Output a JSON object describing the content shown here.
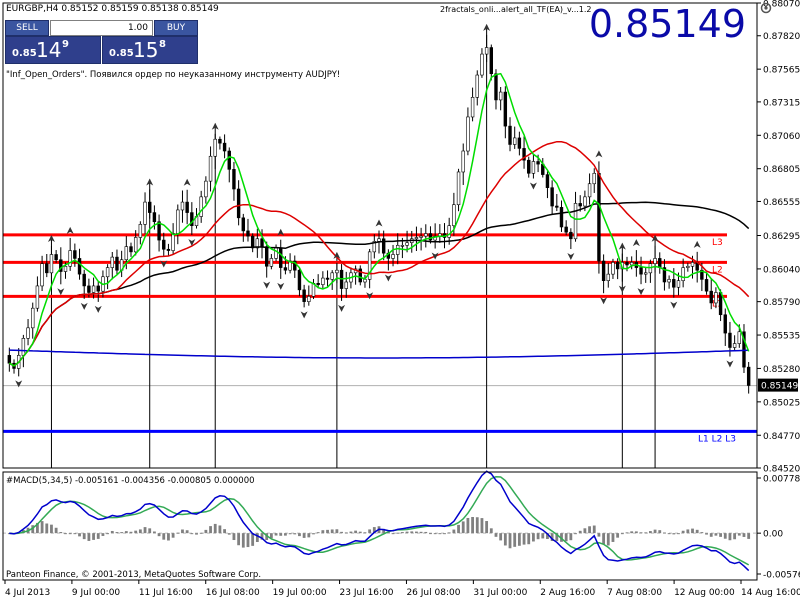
{
  "symbol_info": "EURGBP,H4  0.85152 0.85159 0.85138 0.85149",
  "trade_panel": {
    "sell_label": "SELL",
    "buy_label": "BUY",
    "lot_value": "1.00",
    "sell_price_small": "0.85",
    "sell_price_big": "14",
    "sell_price_sup": "9",
    "buy_price_small": "0.85",
    "buy_price_big": "15",
    "buy_price_sup": "8"
  },
  "big_price": "0.85149",
  "indicator_name": "2fractals_onli...alert_all_TF(EA)_v...1.2",
  "info_message": "\"Inf_Open_Orders\". Появился ордер по неуказанному инструменту AUDJPY!",
  "macd_label": "#MACD(5,34,5) -0.005161 -0.004356 -0.000805 0.000000",
  "copyright": "Panteon Finance, © 2001-2013, MetaQuotes Software Corp.",
  "colors": {
    "fast_ma": "#00dd00",
    "mid_ma": "#dd0000",
    "slow_ma": "#000000",
    "long_ma": "#0000cc",
    "level_lines": "#ff0000",
    "support_line": "#0000ff",
    "candles": "#000000",
    "macd_hist": "#808080",
    "macd_line": "#0000cc",
    "macd_signal": "#33aa55"
  },
  "chart_data": [
    {
      "type": "candlestick",
      "symbol": "EURGBP",
      "timeframe": "H4",
      "ylim": [
        0.8452,
        0.8807
      ],
      "y_ticks": [
        "0.88070",
        "0.87820",
        "0.87565",
        "0.87315",
        "0.87060",
        "0.86805",
        "0.86555",
        "0.86295",
        "0.86040",
        "0.85790",
        "0.85535",
        "0.85280",
        "0.85025",
        "0.84770",
        "0.84520"
      ],
      "x_ticks": [
        "4 Jul 2013",
        "9 Jul 00:00",
        "11 Jul 16:00",
        "16 Jul 08:00",
        "19 Jul 00:00",
        "23 Jul 16:00",
        "26 Jul 08:00",
        "31 Jul 00:00",
        "2 Aug 16:00",
        "7 Aug 08:00",
        "12 Aug 00:00",
        "14 Aug 16:00"
      ],
      "current_price": "0.85149",
      "levels": [
        {
          "name": "L3",
          "price": 0.863
        },
        {
          "name": "L2",
          "price": 0.8609
        },
        {
          "name": "L1",
          "price": 0.8583
        }
      ],
      "support_line": {
        "price": 0.848,
        "label": "L1 L2 L3"
      },
      "close": [
        0.8532,
        0.8528,
        0.8538,
        0.8551,
        0.8559,
        0.8574,
        0.8591,
        0.8608,
        0.8601,
        0.8615,
        0.8611,
        0.8602,
        0.8606,
        0.8618,
        0.8612,
        0.86,
        0.8591,
        0.8586,
        0.8591,
        0.8587,
        0.8598,
        0.8605,
        0.8613,
        0.8603,
        0.8611,
        0.8621,
        0.8617,
        0.8628,
        0.8638,
        0.8655,
        0.8647,
        0.864,
        0.8626,
        0.8619,
        0.8618,
        0.8631,
        0.8649,
        0.8655,
        0.8647,
        0.8637,
        0.8644,
        0.8659,
        0.8671,
        0.869,
        0.8703,
        0.87,
        0.8694,
        0.868,
        0.8665,
        0.8643,
        0.8633,
        0.8629,
        0.862,
        0.8627,
        0.8621,
        0.8606,
        0.8612,
        0.862,
        0.8605,
        0.8603,
        0.861,
        0.8603,
        0.8588,
        0.8579,
        0.8583,
        0.8593,
        0.8592,
        0.8597,
        0.8596,
        0.8601,
        0.8603,
        0.8589,
        0.8594,
        0.8601,
        0.8604,
        0.8594,
        0.8596,
        0.8617,
        0.8625,
        0.8627,
        0.8616,
        0.8612,
        0.8615,
        0.8622,
        0.8622,
        0.8624,
        0.8627,
        0.8628,
        0.8629,
        0.8631,
        0.8626,
        0.8629,
        0.8631,
        0.8628,
        0.8637,
        0.8653,
        0.8678,
        0.8694,
        0.872,
        0.8735,
        0.8752,
        0.8768,
        0.8773,
        0.8753,
        0.8733,
        0.8739,
        0.8713,
        0.8699,
        0.8704,
        0.8696,
        0.8687,
        0.8677,
        0.8686,
        0.8684,
        0.8676,
        0.8666,
        0.8652,
        0.8651,
        0.8636,
        0.8632,
        0.8627,
        0.8654,
        0.8652,
        0.8659,
        0.8669,
        0.8677,
        0.861,
        0.8595,
        0.86,
        0.8609,
        0.8604,
        0.8609,
        0.8607,
        0.8609,
        0.8605,
        0.86,
        0.8601,
        0.8608,
        0.8612,
        0.8605,
        0.8594,
        0.8596,
        0.859,
        0.8595,
        0.8605,
        0.8606,
        0.8609,
        0.8603,
        0.8596,
        0.8587,
        0.8578,
        0.8586,
        0.8569,
        0.8555,
        0.8544,
        0.8547,
        0.8556,
        0.8529,
        0.8515
      ]
    },
    {
      "type": "macd",
      "params": "5,34,5",
      "ylim": [
        -0.00576,
        0.00778
      ],
      "y_ticks": [
        "0.00778",
        "0.00",
        "-0.00576"
      ]
    }
  ]
}
